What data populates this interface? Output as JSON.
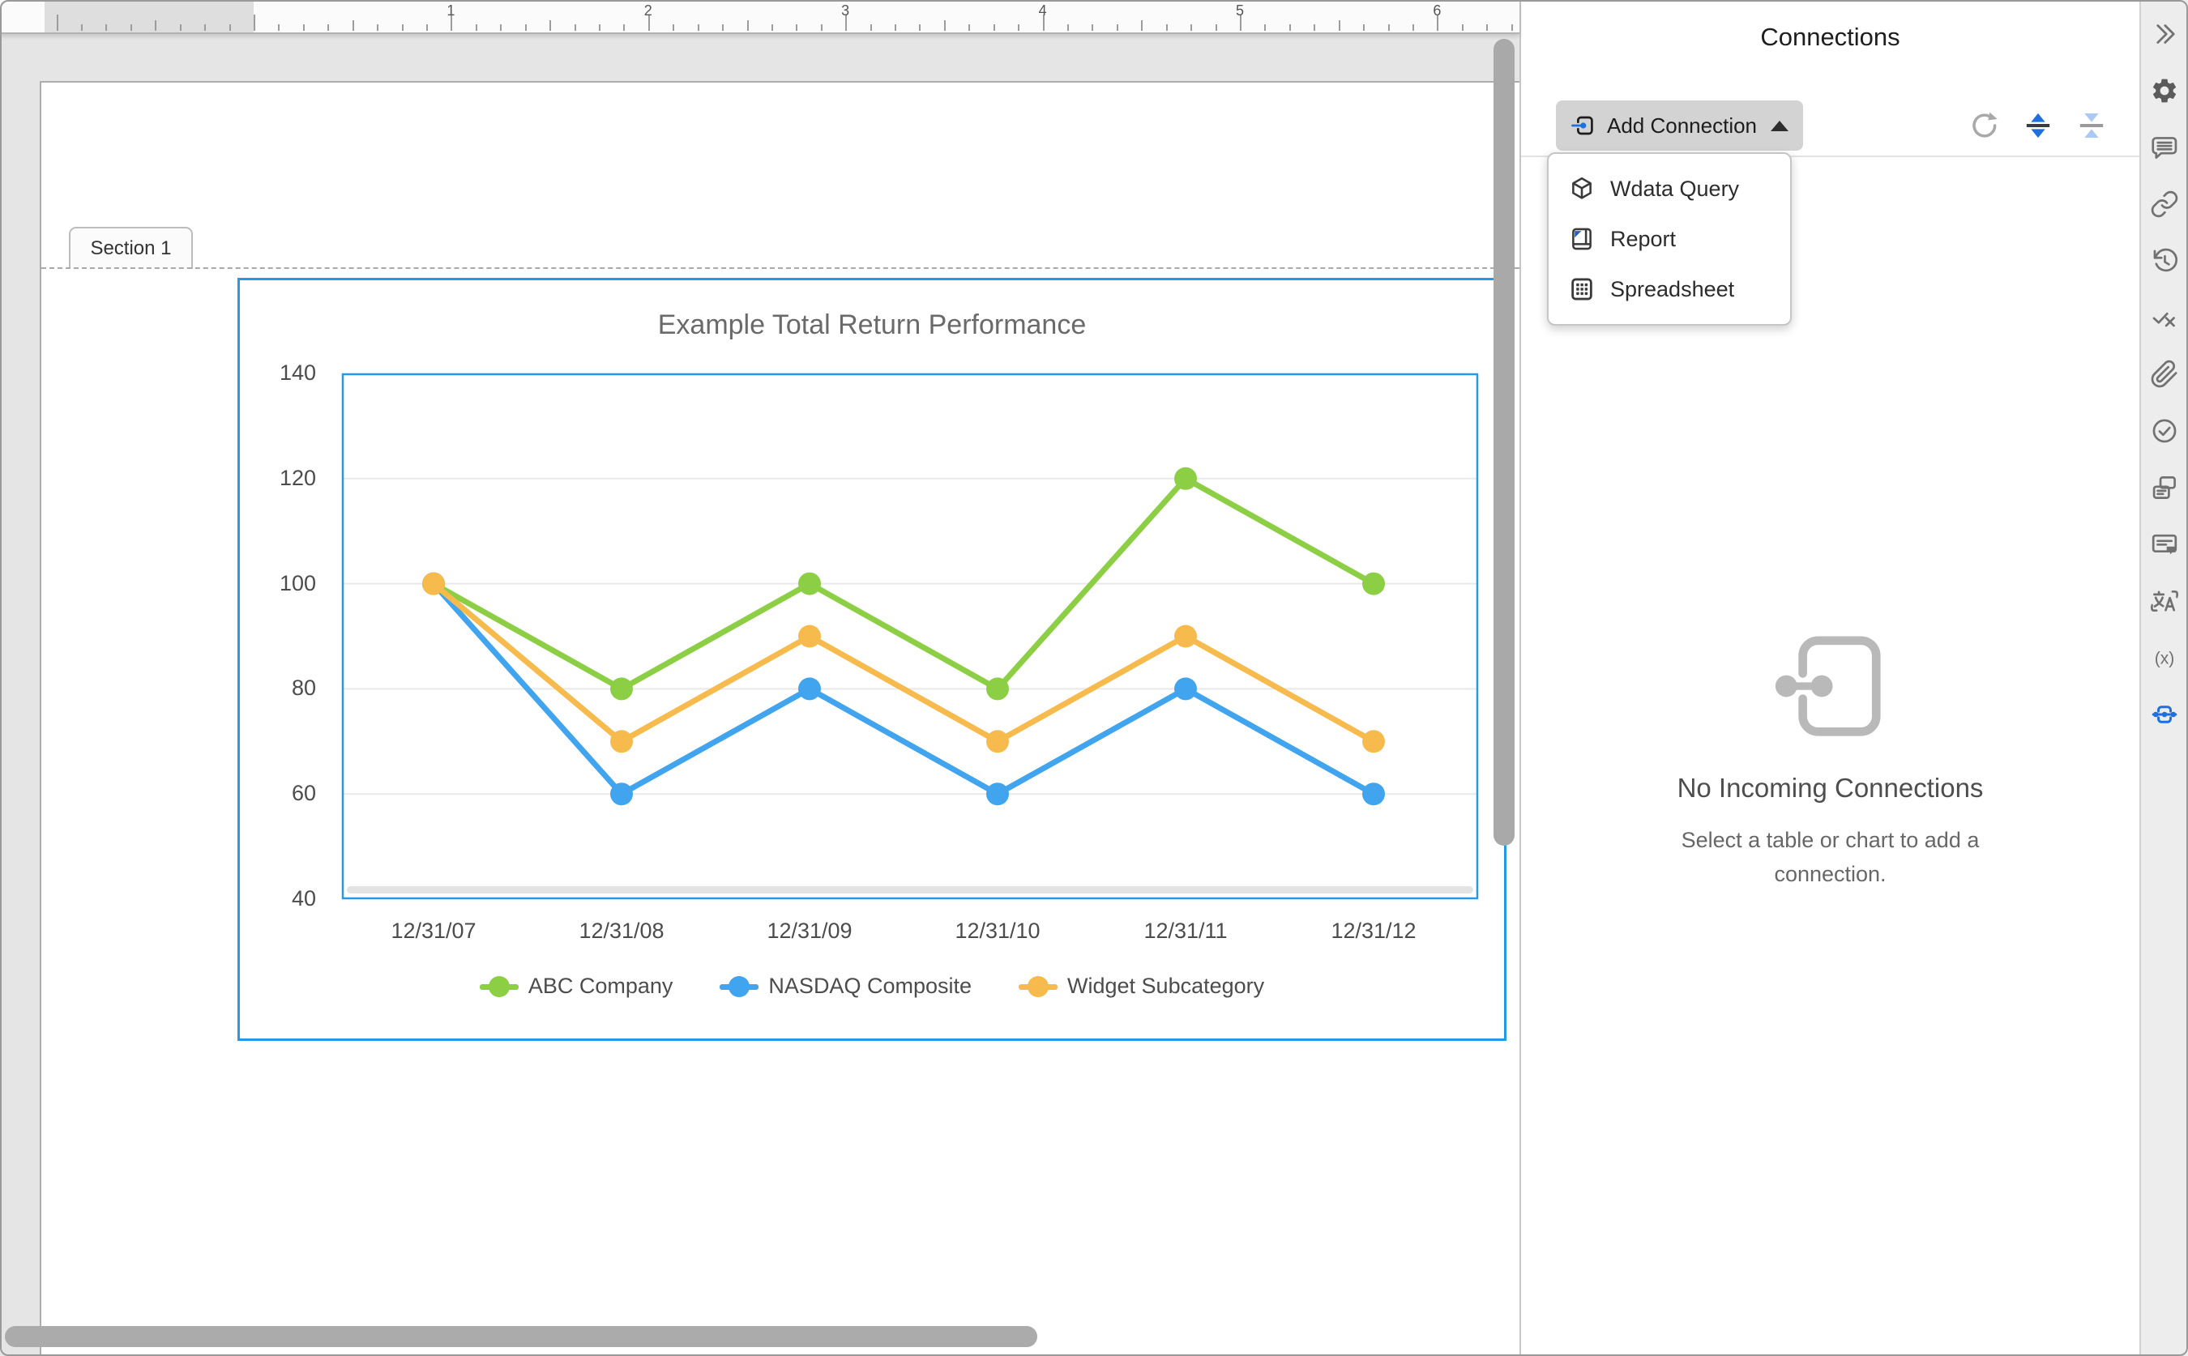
{
  "ruler": {
    "numbers": [
      "1",
      "2",
      "3",
      "4",
      "5",
      "6"
    ]
  },
  "section_tab": {
    "label": "Section 1"
  },
  "chart_data": {
    "type": "line",
    "title": "Example Total Return Performance",
    "categories": [
      "12/31/07",
      "12/31/08",
      "12/31/09",
      "12/31/10",
      "12/31/11",
      "12/31/12"
    ],
    "series": [
      {
        "name": "ABC Company",
        "color": "#8cce44",
        "values": [
          100,
          80,
          100,
          80,
          120,
          100
        ]
      },
      {
        "name": "NASDAQ Composite",
        "color": "#41a4ee",
        "values": [
          100,
          60,
          80,
          60,
          80,
          60
        ]
      },
      {
        "name": "Widget Subcategory",
        "color": "#f7ba4d",
        "values": [
          100,
          70,
          90,
          70,
          90,
          70
        ]
      }
    ],
    "ylim": [
      40,
      140
    ],
    "yticks": [
      140,
      120,
      100,
      80,
      60,
      40
    ],
    "grid": true,
    "legend_position": "bottom"
  },
  "panel": {
    "title": "Connections",
    "add_connection_label": "Add Connection",
    "toolbar_icons": [
      {
        "name": "refresh-icon"
      },
      {
        "name": "expand-all-icon"
      },
      {
        "name": "collapse-all-icon"
      }
    ],
    "menu": {
      "items": [
        {
          "icon": "wdata-query-icon",
          "label": "Wdata Query"
        },
        {
          "icon": "report-icon",
          "label": "Report"
        },
        {
          "icon": "spreadsheet-icon",
          "label": "Spreadsheet"
        }
      ]
    },
    "empty_state": {
      "heading": "No Incoming Connections",
      "subtext": "Select a table or chart to add a connection."
    }
  },
  "sidebar": {
    "icons": [
      {
        "name": "collapse-panel-icon"
      },
      {
        "name": "settings-icon"
      },
      {
        "name": "comments-icon"
      },
      {
        "name": "link-icon"
      },
      {
        "name": "history-icon"
      },
      {
        "name": "review-check-x-icon"
      },
      {
        "name": "attachments-icon"
      },
      {
        "name": "tasks-icon"
      },
      {
        "name": "copies-icon"
      },
      {
        "name": "notes-icon"
      },
      {
        "name": "translate-icon"
      },
      {
        "name": "formula-icon"
      },
      {
        "name": "connections-icon",
        "active": true
      }
    ]
  },
  "colors": {
    "accent_blue": "#1f6fdf",
    "selection_blue": "#2499e9",
    "series_green": "#8cce44",
    "series_blue": "#41a4ee",
    "series_orange": "#f7ba4d"
  }
}
